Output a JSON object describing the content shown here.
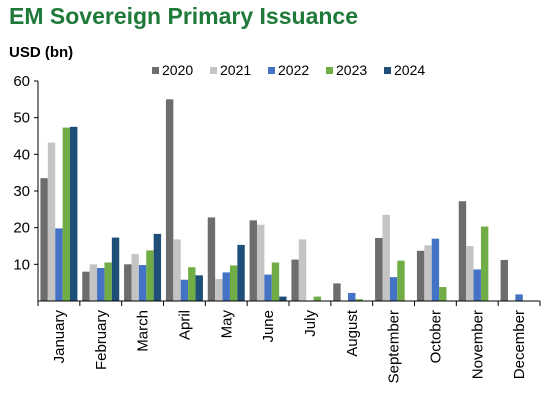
{
  "title": "EM Sovereign Primary Issuance",
  "chart_data": {
    "type": "bar",
    "title": "EM Sovereign Primary Issuance",
    "ylabel": "USD (bn)",
    "xlabel": "",
    "ylim": [
      0,
      60
    ],
    "yticks": [
      10,
      20,
      30,
      40,
      50,
      60
    ],
    "grid": false,
    "legend_position": "top",
    "categories": [
      "January",
      "February",
      "March",
      "April",
      "May",
      "June",
      "July",
      "August",
      "September",
      "October",
      "November",
      "December"
    ],
    "series": [
      {
        "name": "2020",
        "color": "#6d6d6d",
        "values": [
          33.5,
          8,
          10,
          55,
          22.8,
          22,
          11.3,
          4.8,
          17.2,
          13.7,
          27.2,
          11.2
        ]
      },
      {
        "name": "2021",
        "color": "#c4c4c4",
        "values": [
          43.2,
          10,
          12.8,
          16.8,
          6,
          20.8,
          16.8,
          0,
          23.5,
          15.2,
          15,
          0
        ]
      },
      {
        "name": "2022",
        "color": "#4472c4",
        "values": [
          19.8,
          9,
          9.8,
          5.8,
          7.8,
          7.2,
          0,
          2.2,
          6.5,
          17,
          8.6,
          1.8
        ]
      },
      {
        "name": "2023",
        "color": "#70ad47",
        "values": [
          47.3,
          10.5,
          13.8,
          9.2,
          9.7,
          10.5,
          1.2,
          0.5,
          11,
          3.8,
          20.3,
          0
        ]
      },
      {
        "name": "2024",
        "color": "#1f4e79",
        "values": [
          47.5,
          17.3,
          18.3,
          7,
          15.3,
          1.2,
          0,
          0,
          0,
          0,
          0,
          0
        ]
      }
    ]
  }
}
